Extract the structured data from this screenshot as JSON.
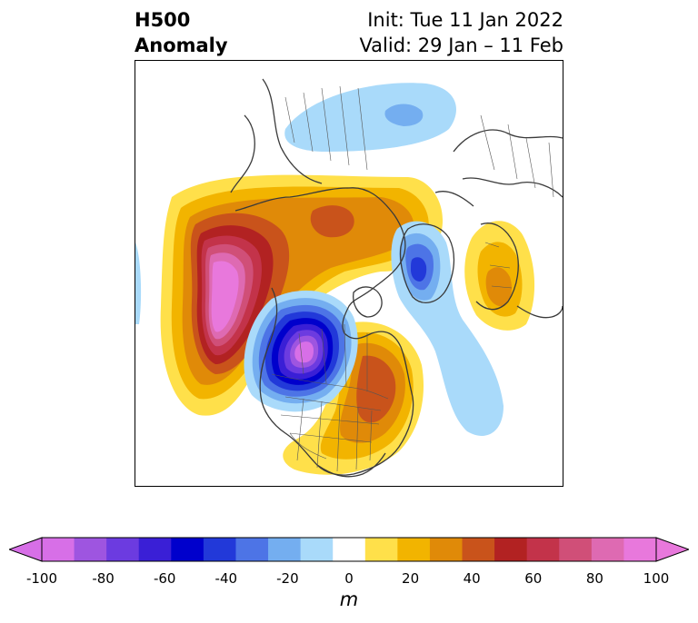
{
  "title": {
    "left_line1": "H500",
    "left_line2": "Anomaly",
    "right_line1": "Init: Tue 11 Jan 2022",
    "right_line2": "Valid: 29 Jan – 11 Feb"
  },
  "colorbar": {
    "unit": "m",
    "ticks": [
      "-100",
      "-80",
      "-60",
      "-40",
      "-20",
      "0",
      "20",
      "40",
      "60",
      "80",
      "100"
    ],
    "levels": [
      -100,
      -90,
      -80,
      -70,
      -60,
      -50,
      -40,
      -30,
      -20,
      -10,
      10,
      20,
      30,
      40,
      50,
      60,
      70,
      80,
      90,
      100
    ],
    "colors": [
      "#d76fe7",
      "#9e55e0",
      "#6c3be0",
      "#3a1fd6",
      "#0000cc",
      "#2239d9",
      "#4d74e6",
      "#74aef0",
      "#a9dafa",
      "#ffffff",
      "#ffe04a",
      "#f2b400",
      "#e08a08",
      "#c9531b",
      "#b22222",
      "#c3334a",
      "#d04f78",
      "#de6ab2",
      "#e878dc"
    ],
    "extend_low_color": "#d76fe7",
    "extend_high_color": "#e878dc"
  }
}
